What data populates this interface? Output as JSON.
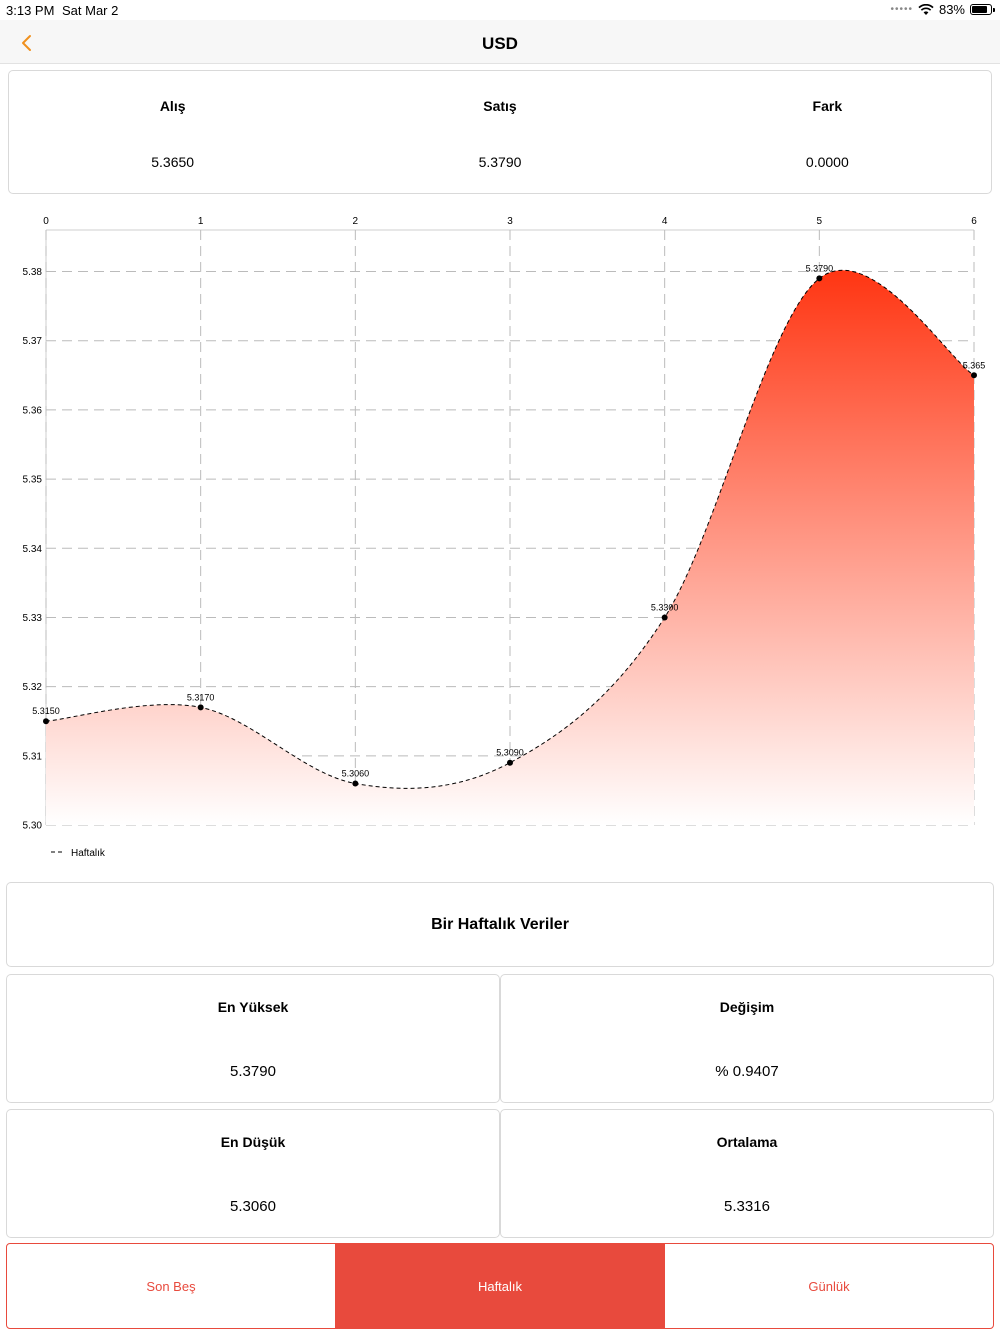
{
  "status_bar": {
    "time": "3:13 PM",
    "date": "Sat Mar 2",
    "battery": "83%",
    "battery_level": 0.83
  },
  "nav": {
    "title": "USD"
  },
  "rates": [
    {
      "label": "Alış",
      "value": "5.3650"
    },
    {
      "label": "Satış",
      "value": "5.3790"
    },
    {
      "label": "Fark",
      "value": "0.0000"
    }
  ],
  "chart_data": {
    "type": "area",
    "x": [
      0,
      1,
      2,
      3,
      4,
      5,
      6
    ],
    "x_ticks": [
      "0",
      "1",
      "2",
      "3",
      "4",
      "5",
      "6"
    ],
    "y_ticks": [
      "5.30",
      "5.31",
      "5.32",
      "5.33",
      "5.34",
      "5.35",
      "5.36",
      "5.37",
      "5.38"
    ],
    "ylim": [
      5.3,
      5.386
    ],
    "series": [
      {
        "name": "Haftalık",
        "values": [
          5.315,
          5.317,
          5.306,
          5.309,
          5.33,
          5.379,
          5.365
        ]
      }
    ],
    "point_labels": [
      "5.3150",
      "5.3170",
      "5.3060",
      "5.3090",
      "5.3300",
      "5.3790",
      "5.365"
    ],
    "grid": true,
    "legend": "bottom-left",
    "colors": {
      "fill_top": "#ff3512",
      "fill_bottom": "#ffffff",
      "line": "#000000",
      "grid": "#bbbbbb"
    }
  },
  "section": {
    "title": "Bir Haftalık Veriler"
  },
  "stats": [
    {
      "label": "En Yüksek",
      "value": "5.3790"
    },
    {
      "label": "Değişim",
      "value": "% 0.9407"
    },
    {
      "label": "En Düşük",
      "value": "5.3060"
    },
    {
      "label": "Ortalama",
      "value": "5.3316"
    }
  ],
  "tabs": [
    {
      "label": "Son Beş",
      "active": false
    },
    {
      "label": "Haftalık",
      "active": true
    },
    {
      "label": "Günlük",
      "active": false
    }
  ],
  "colors": {
    "accent": "#e84a3d",
    "back_arrow": "#f0901e"
  }
}
